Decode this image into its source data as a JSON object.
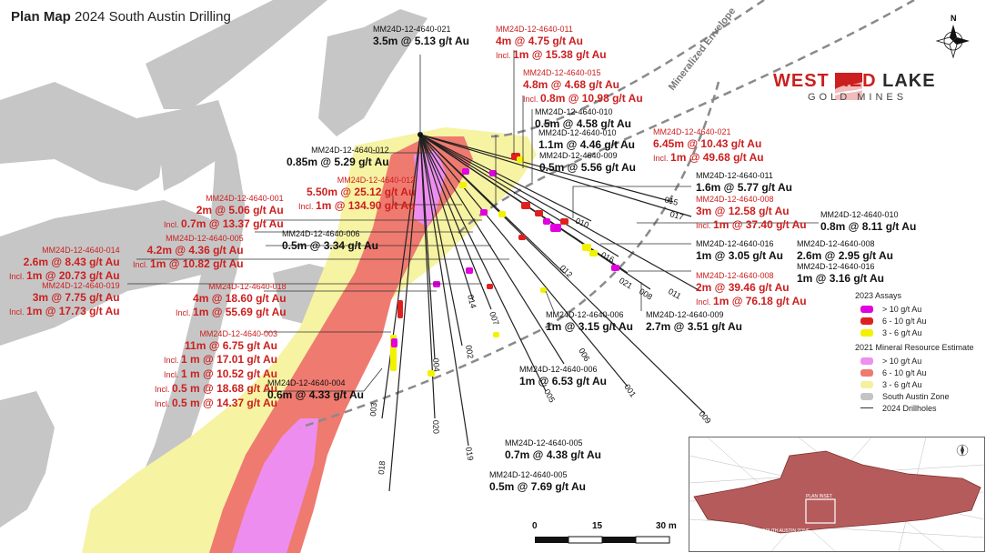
{
  "title": {
    "bold": "Plan Map",
    "rest": "2024 South Austin Drilling"
  },
  "labels": {
    "envelope": "Mineralized Envelope",
    "north": "N"
  },
  "logo": {
    "name_red": "WEST RED",
    "name_dark": "LAKE",
    "sub": "GOLD MINES"
  },
  "intercepts": [
    {
      "id": "MM24D-12-4640-021",
      "lines": [
        "3.5m @ 5.13 g/t Au"
      ],
      "color": "blk"
    },
    {
      "id": "MM24D-12-4640-011",
      "lines": [
        "4m @ 4.75 g/t Au"
      ],
      "incl": [
        "1m @ 15.38 g/t Au"
      ],
      "color": "red"
    },
    {
      "id": "MM24D-12-4640-015",
      "lines": [
        "4.8m @ 4.68 g/t Au"
      ],
      "incl": [
        "0.8m @ 10.98 g/t Au"
      ],
      "color": "red"
    },
    {
      "id": "MM24D-12-4640-010",
      "lines": [
        "0.5m @ 4.58 g/t Au"
      ],
      "color": "blk"
    },
    {
      "id": "MM24D-12-4640-010",
      "lines": [
        "1.1m @ 4.46 g/t Au"
      ],
      "color": "blk"
    },
    {
      "id": "MM24D-12-4640-009",
      "lines": [
        "0.5m @ 5.56 g/t Au"
      ],
      "color": "blk"
    },
    {
      "id": "MM24D-12-4640-021",
      "lines": [
        "6.45m @ 10.43 g/t Au"
      ],
      "incl": [
        "1m @ 49.68 g/t Au"
      ],
      "color": "red"
    },
    {
      "id": "MM24D-12-4640-012",
      "lines": [
        "0.85m @ 5.29 g/t Au"
      ],
      "color": "blk"
    },
    {
      "id": "MM24D-12-4640-012",
      "lines": [
        "5.50m @ 25.12 g/t Au"
      ],
      "incl": [
        "1m @ 134.90 g/t Au"
      ],
      "color": "red"
    },
    {
      "id": "MM24D-12-4640-011",
      "lines": [
        "1.6m @ 5.77 g/t Au"
      ],
      "color": "blk"
    },
    {
      "id": "MM24D-12-4640-008",
      "lines": [
        "3m @ 12.58 g/t Au"
      ],
      "incl": [
        "1m @ 37.40 g/t Au"
      ],
      "color": "red"
    },
    {
      "id": "MM24D-12-4640-010",
      "lines": [
        "0.8m @ 8.11 g/t Au"
      ],
      "color": "blk"
    },
    {
      "id": "MM24D-12-4640-001",
      "lines": [
        "2m @ 5.06 g/t Au"
      ],
      "incl": [
        "0.7m @ 13.37 g/t Au"
      ],
      "color": "red"
    },
    {
      "id": "MM24D-12-4640-006",
      "lines": [
        "0.5m @ 3.34 g/t Au"
      ],
      "color": "blk"
    },
    {
      "id": "MM24D-12-4640-005",
      "lines": [
        "4.2m @ 4.36 g/t Au"
      ],
      "incl": [
        "1m @ 10.82 g/t Au"
      ],
      "color": "red"
    },
    {
      "id": "MM24D-12-4640-014",
      "lines": [
        "2.6m @ 8.43 g/t Au"
      ],
      "incl": [
        "1m @ 20.73 g/t Au"
      ],
      "color": "red"
    },
    {
      "id": "MM24D-12-4640-016",
      "lines": [
        "1m @ 3.05 g/t Au"
      ],
      "color": "blk"
    },
    {
      "id": "MM24D-12-4640-008",
      "lines": [
        "2.6m @ 2.95 g/t Au"
      ],
      "color": "blk"
    },
    {
      "id": "MM24D-12-4640-016",
      "lines": [
        "1m @ 3.16 g/t Au"
      ],
      "color": "blk"
    },
    {
      "id": "MM24D-12-4640-019",
      "lines": [
        "3m @ 7.75 g/t Au"
      ],
      "incl": [
        "1m @ 17.73 g/t Au"
      ],
      "color": "red"
    },
    {
      "id": "MM24D-12-4640-018",
      "lines": [
        "4m @ 18.60 g/t Au"
      ],
      "incl": [
        "1m @ 55.69 g/t Au"
      ],
      "color": "red"
    },
    {
      "id": "MM24D-12-4640-008",
      "lines": [
        "2m @ 39.46 g/t Au"
      ],
      "incl": [
        "1m @ 76.18 g/t Au"
      ],
      "color": "red"
    },
    {
      "id": "MM24D-12-4640-006",
      "lines": [
        "1m @ 3.15 g/t Au"
      ],
      "color": "blk"
    },
    {
      "id": "MM24D-12-4640-009",
      "lines": [
        "2.7m @ 3.51 g/t Au"
      ],
      "color": "blk"
    },
    {
      "id": "MM24D-12-4640-003",
      "lines": [
        "11m @ 6.75 g/t Au"
      ],
      "incl": [
        "1 m @ 17.01 g/t Au",
        "1 m @ 10.52 g/t Au",
        "0.5 m @ 18.68 g/t Au",
        "0.5 m @ 14.37 g/t Au"
      ],
      "color": "red"
    },
    {
      "id": "MM24D-12-4640-006",
      "lines": [
        "1m @ 6.53 g/t Au"
      ],
      "color": "blk"
    },
    {
      "id": "MM24D-12-4640-004",
      "lines": [
        "0.6m @ 4.33 g/t Au"
      ],
      "color": "blk"
    },
    {
      "id": "MM24D-12-4640-005",
      "lines": [
        "0.7m @ 4.38 g/t Au"
      ],
      "color": "blk"
    },
    {
      "id": "MM24D-12-4640-005",
      "lines": [
        "0.5m @ 7.69 g/t Au"
      ],
      "color": "blk"
    }
  ],
  "incl_prefix": "Incl.",
  "hole_labels": [
    "015",
    "017",
    "010",
    "016",
    "021",
    "008",
    "011",
    "012",
    "014",
    "007",
    "002",
    "004",
    "003",
    "020",
    "019",
    "018",
    "006",
    "005",
    "001",
    "009"
  ],
  "legend": {
    "assays_title": "2023 Assays",
    "assays": [
      {
        "label": "> 10 g/t Au",
        "color": "#e000e0"
      },
      {
        "label": "6 - 10 g/t Au",
        "color": "#e02020"
      },
      {
        "label": "3 - 6 g/t Au",
        "color": "#f2f200"
      }
    ],
    "mre_title": "2021 Mineral Resource Estimate",
    "mre": [
      {
        "label": "> 10 g/t Au",
        "color": "#ef8fef"
      },
      {
        "label": "6 - 10 g/t Au",
        "color": "#ef7a70"
      },
      {
        "label": "3 - 6 g/t Au",
        "color": "#f3f0a0"
      },
      {
        "label": "South Austin Zone",
        "color": "#c4c4c4"
      },
      {
        "label": "2024 Drillholes",
        "color": "#333333"
      }
    ]
  },
  "scale": {
    "ticks": [
      "0",
      "15",
      "30 m"
    ]
  },
  "inset": {
    "label1": "PLAN INSET",
    "label2": "SOUTH AUSTIN ZONE"
  },
  "colors": {
    "red": "#cc1f1f",
    "grey_zone": "#c4c4c4",
    "yellow": "#f6f3a2",
    "pink": "#f08ac8",
    "salmon": "#ef7a70"
  }
}
